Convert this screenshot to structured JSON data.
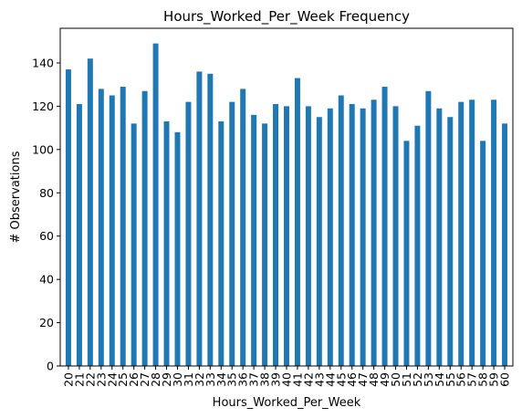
{
  "chart_data": {
    "type": "bar",
    "title": "Hours_Worked_Per_Week Frequency",
    "xlabel": "Hours_Worked_Per_Week",
    "ylabel": "# Observations",
    "ylim": [
      0,
      156
    ],
    "yticks": [
      0,
      20,
      40,
      60,
      80,
      100,
      120,
      140
    ],
    "bar_color": "#1f77b4",
    "grid": false,
    "categories": [
      "20",
      "21",
      "22",
      "23",
      "24",
      "25",
      "26",
      "27",
      "28",
      "29",
      "30",
      "31",
      "32",
      "33",
      "34",
      "35",
      "36",
      "37",
      "38",
      "39",
      "40",
      "41",
      "42",
      "43",
      "44",
      "45",
      "46",
      "47",
      "48",
      "49",
      "50",
      "51",
      "52",
      "53",
      "54",
      "55",
      "56",
      "57",
      "58",
      "59",
      "60"
    ],
    "values": [
      137,
      121,
      142,
      128,
      125,
      129,
      112,
      127,
      149,
      113,
      108,
      122,
      136,
      135,
      113,
      122,
      128,
      116,
      112,
      121,
      120,
      133,
      120,
      115,
      119,
      125,
      121,
      119,
      123,
      129,
      120,
      104,
      111,
      127,
      119,
      115,
      122,
      123,
      104,
      123,
      112
    ]
  }
}
